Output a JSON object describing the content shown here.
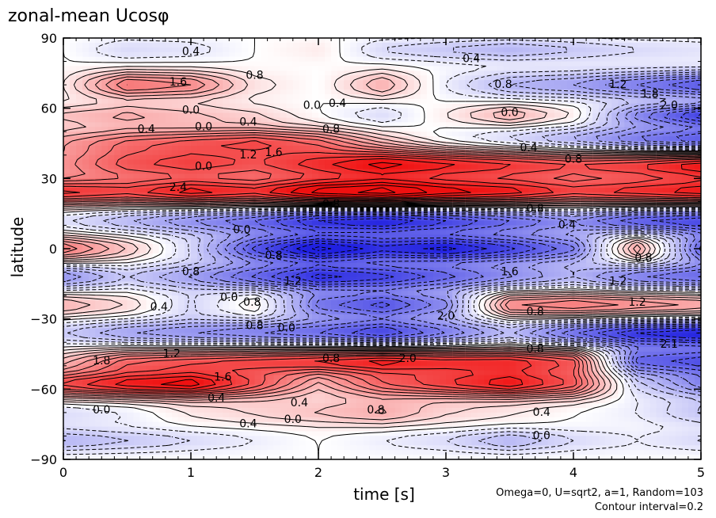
{
  "chart_data": {
    "type": "heatmap",
    "title": "zonal-mean Ucosφ",
    "xlabel": "time [s]",
    "ylabel": "latitude",
    "xlim": [
      0,
      5
    ],
    "ylim": [
      -90,
      90
    ],
    "x_ticks": [
      "0",
      "1",
      "2",
      "3",
      "4",
      "5"
    ],
    "y_ticks": [
      "90",
      "60",
      "30",
      "0",
      "−30",
      "−60",
      "−90"
    ],
    "contour_interval": 0.2,
    "colormap": {
      "negative": "#2020e0",
      "zero": "#ffffff",
      "positive": "#f01010"
    },
    "notes": [
      "Omega=0, U=sqrt2, a=1, Random=103",
      "Contour interval=0.2"
    ],
    "bands": [
      {
        "lat": 85,
        "width": 5,
        "values": [
          0.0,
          -0.4,
          -0.3,
          0.0,
          0.2,
          -0.4,
          -0.6,
          -0.8,
          -0.6,
          -0.4,
          -0.3
        ]
      },
      {
        "lat": 70,
        "width": 6,
        "values": [
          0.2,
          1.4,
          1.2,
          0.3,
          0.0,
          0.8,
          -0.2,
          -0.8,
          -1.0,
          -1.4,
          -1.8
        ]
      },
      {
        "lat": 57,
        "width": 5,
        "values": [
          0.6,
          0.8,
          0.6,
          0.4,
          0.0,
          -0.4,
          0.2,
          0.8,
          0.2,
          -1.2,
          -2.0
        ]
      },
      {
        "lat": 46,
        "width": 6,
        "values": [
          0.8,
          1.2,
          1.4,
          1.6,
          1.2,
          0.4,
          -0.2,
          -0.6,
          -1.0,
          -1.6,
          -2.0
        ]
      },
      {
        "lat": 36,
        "width": 7,
        "values": [
          1.0,
          1.6,
          1.8,
          1.6,
          2.0,
          2.4,
          2.2,
          2.0,
          1.8,
          2.0,
          2.4
        ]
      },
      {
        "lat": 24,
        "width": 6,
        "values": [
          2.0,
          1.8,
          2.2,
          2.0,
          2.6,
          2.8,
          2.4,
          2.2,
          1.8,
          2.0,
          2.2
        ]
      },
      {
        "lat": 12,
        "width": 6,
        "values": [
          -0.4,
          -0.8,
          -1.2,
          -1.6,
          -2.2,
          -2.4,
          -2.0,
          -1.6,
          -1.2,
          -1.8,
          -2.0
        ]
      },
      {
        "lat": 0,
        "width": 6,
        "values": [
          1.4,
          0.6,
          -0.4,
          -1.8,
          -2.6,
          -2.2,
          -2.4,
          -2.0,
          -1.4,
          1.0,
          -1.6
        ]
      },
      {
        "lat": -12,
        "width": 6,
        "values": [
          -1.2,
          -0.6,
          -1.0,
          -1.6,
          -2.2,
          -2.0,
          -1.6,
          -1.2,
          -0.8,
          -1.4,
          -1.6
        ]
      },
      {
        "lat": -24,
        "width": 6,
        "values": [
          0.8,
          0.4,
          -0.4,
          0.2,
          -1.4,
          -1.8,
          -1.2,
          1.2,
          1.4,
          1.2,
          1.0
        ]
      },
      {
        "lat": -36,
        "width": 6,
        "values": [
          -0.6,
          -1.0,
          -1.2,
          -1.4,
          -1.6,
          -2.0,
          -1.4,
          -0.8,
          -1.6,
          -2.2,
          -2.4
        ]
      },
      {
        "lat": -48,
        "width": 6,
        "values": [
          0.6,
          1.4,
          1.6,
          1.8,
          2.0,
          2.2,
          2.0,
          2.0,
          1.6,
          -1.6,
          -1.8
        ]
      },
      {
        "lat": -58,
        "width": 6,
        "values": [
          1.8,
          2.2,
          2.4,
          1.6,
          0.6,
          1.4,
          1.8,
          2.2,
          1.6,
          -0.4,
          -1.2
        ]
      },
      {
        "lat": -70,
        "width": 6,
        "values": [
          -0.4,
          -0.2,
          0.2,
          0.4,
          0.6,
          0.8,
          0.4,
          0.2,
          0.0,
          -0.2,
          -0.6
        ]
      },
      {
        "lat": -82,
        "width": 5,
        "values": [
          -0.8,
          -0.6,
          -0.4,
          -0.2,
          0.0,
          -0.2,
          -0.4,
          -0.8,
          -0.4,
          -0.2,
          -0.4
        ]
      }
    ],
    "contour_labels": [
      {
        "text": "0.4",
        "t": 1.0,
        "lat": 84
      },
      {
        "text": "0.8",
        "t": 1.5,
        "lat": 74
      },
      {
        "text": "0.4",
        "t": 3.2,
        "lat": 81
      },
      {
        "text": "0.8",
        "t": 3.45,
        "lat": 70
      },
      {
        "text": "1.2",
        "t": 4.35,
        "lat": 70
      },
      {
        "text": "1.8",
        "t": 4.6,
        "lat": 66
      },
      {
        "text": "2.0",
        "t": 4.75,
        "lat": 61
      },
      {
        "text": "1.6",
        "t": 0.9,
        "lat": 71
      },
      {
        "text": "0.0",
        "t": 1.0,
        "lat": 59
      },
      {
        "text": "0.0",
        "t": 1.95,
        "lat": 61
      },
      {
        "text": "0.4",
        "t": 2.15,
        "lat": 62
      },
      {
        "text": "0.0",
        "t": 3.5,
        "lat": 58
      },
      {
        "text": "0.4",
        "t": 0.65,
        "lat": 51
      },
      {
        "text": "0.0",
        "t": 1.1,
        "lat": 52
      },
      {
        "text": "0.4",
        "t": 1.45,
        "lat": 54
      },
      {
        "text": "0.8",
        "t": 2.1,
        "lat": 51
      },
      {
        "text": "1.2",
        "t": 1.45,
        "lat": 40
      },
      {
        "text": "1.6",
        "t": 1.65,
        "lat": 41
      },
      {
        "text": "0.4",
        "t": 3.65,
        "lat": 43
      },
      {
        "text": "0.8",
        "t": 4.0,
        "lat": 38
      },
      {
        "text": "0.0",
        "t": 1.1,
        "lat": 35
      },
      {
        "text": "2.4",
        "t": 0.9,
        "lat": 26
      },
      {
        "text": "0.8",
        "t": 2.1,
        "lat": 19
      },
      {
        "text": "0.8",
        "t": 3.7,
        "lat": 17
      },
      {
        "text": "0.4",
        "t": 3.95,
        "lat": 10
      },
      {
        "text": "0.0",
        "t": 1.4,
        "lat": 8
      },
      {
        "text": "0.8",
        "t": 1.65,
        "lat": -3
      },
      {
        "text": "1.6",
        "t": 3.5,
        "lat": -10
      },
      {
        "text": "1.2",
        "t": 4.35,
        "lat": -14
      },
      {
        "text": "0.8",
        "t": 4.55,
        "lat": -4
      },
      {
        "text": "0.8",
        "t": 1.0,
        "lat": -10
      },
      {
        "text": "1.2",
        "t": 1.8,
        "lat": -14
      },
      {
        "text": "0.4",
        "t": 0.75,
        "lat": -25
      },
      {
        "text": "0.0",
        "t": 1.3,
        "lat": -21
      },
      {
        "text": "0.8",
        "t": 1.48,
        "lat": -23
      },
      {
        "text": "1.2",
        "t": 4.5,
        "lat": -23
      },
      {
        "text": "0.8",
        "t": 3.7,
        "lat": -27
      },
      {
        "text": "0.8",
        "t": 1.5,
        "lat": -33
      },
      {
        "text": "0.0",
        "t": 1.75,
        "lat": -34
      },
      {
        "text": "2.0",
        "t": 3.0,
        "lat": -29
      },
      {
        "text": "0.8",
        "t": 3.7,
        "lat": -43
      },
      {
        "text": "2.1",
        "t": 4.75,
        "lat": -41
      },
      {
        "text": "1.8",
        "t": 0.3,
        "lat": -48
      },
      {
        "text": "1.2",
        "t": 0.85,
        "lat": -45
      },
      {
        "text": "0.8",
        "t": 2.1,
        "lat": -47
      },
      {
        "text": "2.0",
        "t": 2.7,
        "lat": -47
      },
      {
        "text": "1.6",
        "t": 1.25,
        "lat": -55
      },
      {
        "text": "0.4",
        "t": 1.2,
        "lat": -64
      },
      {
        "text": "0.4",
        "t": 1.85,
        "lat": -66
      },
      {
        "text": "0.8",
        "t": 2.45,
        "lat": -69
      },
      {
        "text": "0.4",
        "t": 3.75,
        "lat": -70
      },
      {
        "text": "0.0",
        "t": 0.3,
        "lat": -69
      },
      {
        "text": "0.4",
        "t": 1.45,
        "lat": -75
      },
      {
        "text": "0.0",
        "t": 1.8,
        "lat": -73
      },
      {
        "text": "0.0",
        "t": 3.75,
        "lat": -80
      }
    ]
  }
}
